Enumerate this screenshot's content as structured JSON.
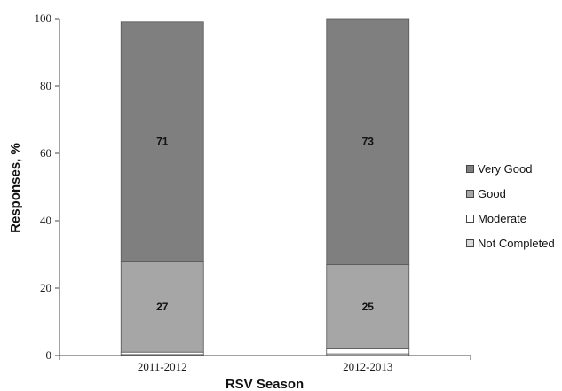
{
  "chart_data": {
    "type": "bar",
    "stacked": true,
    "categories": [
      "2011-2012",
      "2012-2013"
    ],
    "series": [
      {
        "name": "Not Completed",
        "color": "#d9d9d9",
        "values": [
          0.3,
          0.5
        ],
        "labels": [
          "",
          ""
        ]
      },
      {
        "name": "Moderate",
        "color": "#ffffff",
        "values": [
          0.7,
          1.5
        ],
        "labels": [
          "",
          ""
        ]
      },
      {
        "name": "Good",
        "color": "#a6a6a6",
        "values": [
          27,
          25
        ],
        "labels": [
          "27",
          "25"
        ]
      },
      {
        "name": "Very Good",
        "color": "#7f7f7f",
        "values": [
          71,
          73
        ],
        "labels": [
          "71",
          "73"
        ]
      }
    ],
    "legend_order": [
      "Very Good",
      "Good",
      "Moderate",
      "Not Completed"
    ],
    "legend_position": "right",
    "xlabel": "RSV Season",
    "ylabel": "Responses, %",
    "ylim": [
      0,
      100
    ],
    "yticks": [
      0,
      20,
      40,
      60,
      80,
      100
    ],
    "grid": false
  }
}
